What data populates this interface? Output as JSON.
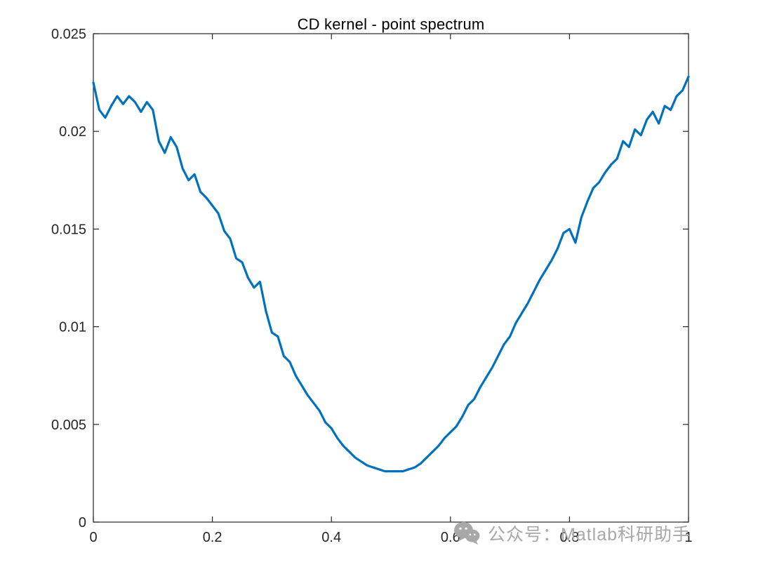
{
  "figure": {
    "background": "#ffffff",
    "axis_color": "#262626",
    "tick_label_color": "#262626"
  },
  "chart_data": {
    "type": "line",
    "title": "CD kernel - point spectrum",
    "xlabel": "",
    "ylabel": "",
    "xlim": [
      0,
      1
    ],
    "ylim": [
      0,
      0.025
    ],
    "grid": false,
    "legend": null,
    "x_ticks": [
      0,
      0.2,
      0.4,
      0.6,
      0.8,
      1
    ],
    "x_tick_labels": [
      "0",
      "0.2",
      "0.4",
      "0.6",
      "0.8",
      "1"
    ],
    "y_ticks": [
      0,
      0.005,
      0.01,
      0.015,
      0.02,
      0.025
    ],
    "y_tick_labels": [
      "0",
      "0.005",
      "0.01",
      "0.015",
      "0.02",
      "0.025"
    ],
    "x_start": 0,
    "x_step": 0.01,
    "series": [
      {
        "name": "CD kernel point spectrum",
        "color": "#0072BD",
        "line_width": 3.2,
        "y": [
          0.0225,
          0.0211,
          0.0207,
          0.0213,
          0.0218,
          0.0214,
          0.0218,
          0.0215,
          0.021,
          0.0215,
          0.0211,
          0.0195,
          0.0189,
          0.0197,
          0.0192,
          0.0181,
          0.0175,
          0.0178,
          0.0169,
          0.0166,
          0.0162,
          0.0158,
          0.0149,
          0.0145,
          0.0135,
          0.0133,
          0.0125,
          0.012,
          0.0123,
          0.0108,
          0.0097,
          0.0095,
          0.0085,
          0.0082,
          0.0075,
          0.007,
          0.0065,
          0.0061,
          0.0057,
          0.0051,
          0.0048,
          0.0043,
          0.0039,
          0.0036,
          0.0033,
          0.0031,
          0.0029,
          0.0028,
          0.0027,
          0.0026,
          0.0026,
          0.0026,
          0.0026,
          0.0027,
          0.0028,
          0.003,
          0.0033,
          0.0036,
          0.0039,
          0.0043,
          0.0046,
          0.0049,
          0.0054,
          0.006,
          0.0063,
          0.0069,
          0.0074,
          0.0079,
          0.0085,
          0.0091,
          0.0095,
          0.0102,
          0.0107,
          0.0112,
          0.0118,
          0.0124,
          0.0129,
          0.0134,
          0.014,
          0.0148,
          0.015,
          0.0143,
          0.0156,
          0.0164,
          0.0171,
          0.0174,
          0.0179,
          0.0183,
          0.0186,
          0.0195,
          0.0192,
          0.0201,
          0.0198,
          0.0206,
          0.021,
          0.0204,
          0.0213,
          0.0211,
          0.0218,
          0.0221,
          0.0228
        ]
      }
    ]
  },
  "watermark": {
    "text": "公众号：Matlab科研助手",
    "icon": "wechat-icon",
    "color": "#a8a8a8"
  }
}
